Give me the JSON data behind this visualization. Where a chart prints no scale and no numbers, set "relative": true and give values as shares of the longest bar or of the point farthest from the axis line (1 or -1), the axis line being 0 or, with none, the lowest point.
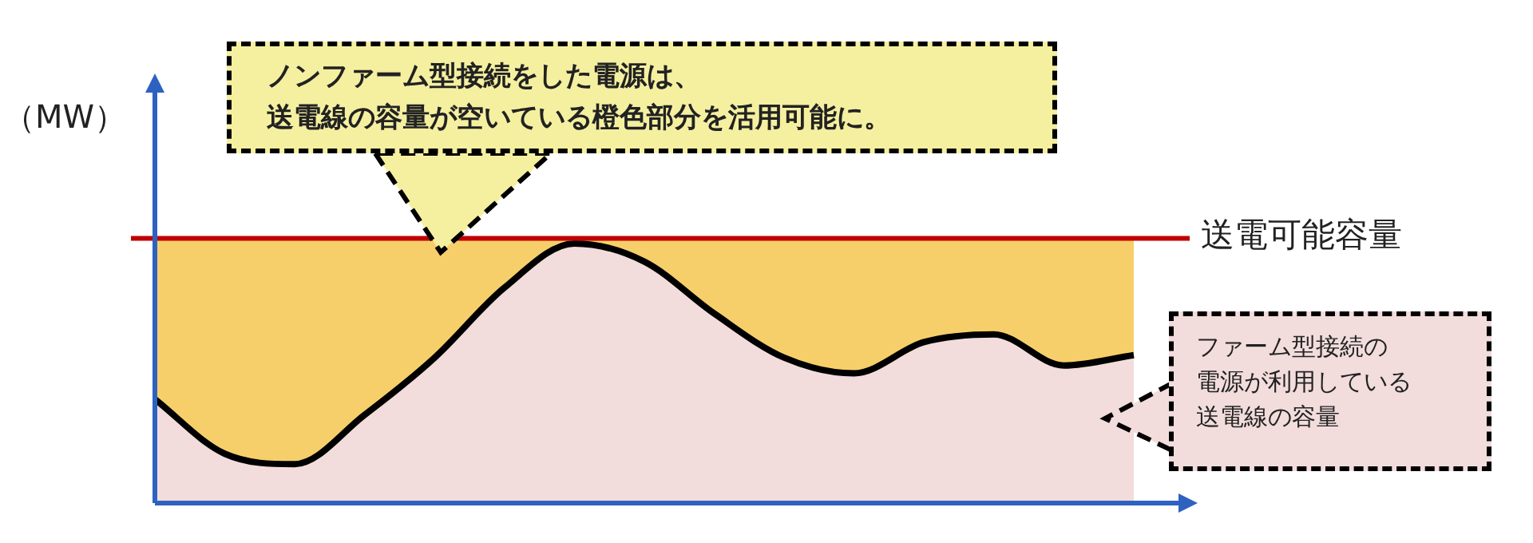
{
  "chart_data": {
    "type": "area",
    "relative": true,
    "ylabel": "（MW）",
    "categories": [
      null,
      null,
      null,
      null,
      null,
      null,
      null,
      null,
      null,
      null,
      null,
      null,
      null,
      null,
      null
    ],
    "series": [
      {
        "color": "#000000",
        "values": [
          0.4,
          0.19,
          0.15,
          0.34,
          0.56,
          0.83,
          1.0,
          0.93,
          0.73,
          0.56,
          0.5,
          0.62,
          0.65,
          0.53,
          0.57
        ]
      }
    ],
    "ref_lines": [
      {
        "axis": "y",
        "value": 1.02,
        "label": "送電可能容量",
        "color": "#c00000"
      }
    ],
    "annotations": [
      "ノンファーム型接続をした電源は、",
      "送電線の容量が空いている橙色部分を活用可能に。",
      "ファーム型接続の",
      "電源が利用している",
      "送電線の容量"
    ],
    "legend": false
  }
}
